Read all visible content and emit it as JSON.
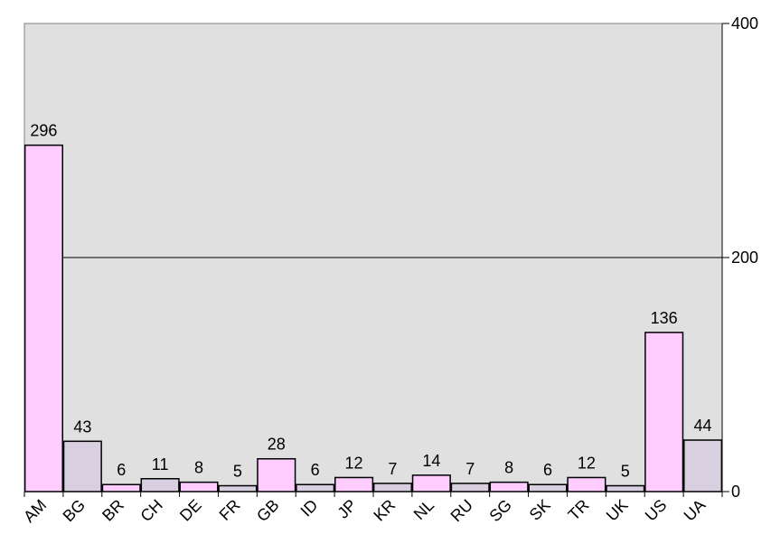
{
  "chart_data": {
    "type": "bar",
    "categories": [
      "AM",
      "BG",
      "BR",
      "CH",
      "DE",
      "FR",
      "GB",
      "ID",
      "JP",
      "KR",
      "NL",
      "RU",
      "SG",
      "SK",
      "TR",
      "UK",
      "US",
      "UA"
    ],
    "values": [
      296,
      43,
      6,
      11,
      8,
      5,
      28,
      6,
      12,
      7,
      14,
      7,
      8,
      6,
      12,
      5,
      136,
      44
    ],
    "colors": [
      "#ffccff",
      "#d8d0e0",
      "#ffccff",
      "#d8d0e0",
      "#ffccff",
      "#d8d0e0",
      "#ffccff",
      "#d8d0e0",
      "#ffccff",
      "#d8d0e0",
      "#ffccff",
      "#d8d0e0",
      "#ffccff",
      "#d8d0e0",
      "#ffccff",
      "#d8d0e0",
      "#ffccff",
      "#d8d0e0"
    ],
    "ylim": [
      0,
      400
    ],
    "yticks": [
      0,
      200,
      400
    ],
    "y_axis_side": "right",
    "grid": true,
    "title": "",
    "xlabel": "",
    "ylabel": "",
    "background": "#e0e0e0"
  }
}
